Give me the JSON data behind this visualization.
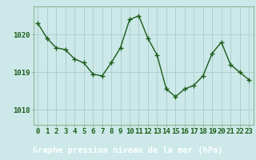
{
  "x": [
    0,
    1,
    2,
    3,
    4,
    5,
    6,
    7,
    8,
    9,
    10,
    11,
    12,
    13,
    14,
    15,
    16,
    17,
    18,
    19,
    20,
    21,
    22,
    23
  ],
  "y": [
    1020.3,
    1019.9,
    1019.65,
    1019.6,
    1019.35,
    1019.25,
    1018.95,
    1018.9,
    1019.25,
    1019.65,
    1020.4,
    1020.5,
    1019.9,
    1019.45,
    1018.55,
    1018.35,
    1018.55,
    1018.65,
    1018.9,
    1019.5,
    1019.8,
    1019.2,
    1019.0,
    1018.8
  ],
  "line_color": "#1a5c1a",
  "marker": "+",
  "marker_size": 4,
  "bg_color": "#cce8e8",
  "plot_bg_color": "#cce8e8",
  "grid_color": "#aacccc",
  "axis_label": "Graphe pression niveau de la mer (hPa)",
  "footer_bg": "#2d6e2d",
  "yticks": [
    1018,
    1019,
    1020
  ],
  "ylim": [
    1017.6,
    1020.75
  ],
  "xlim": [
    -0.5,
    23.5
  ],
  "line_width": 1.0,
  "tick_color": "#1a5c1a",
  "spine_color": "#7aaa7a",
  "xlabel_color": "#cce8e8",
  "axis_label_fontsize": 7.5,
  "tick_fontsize": 6.5
}
